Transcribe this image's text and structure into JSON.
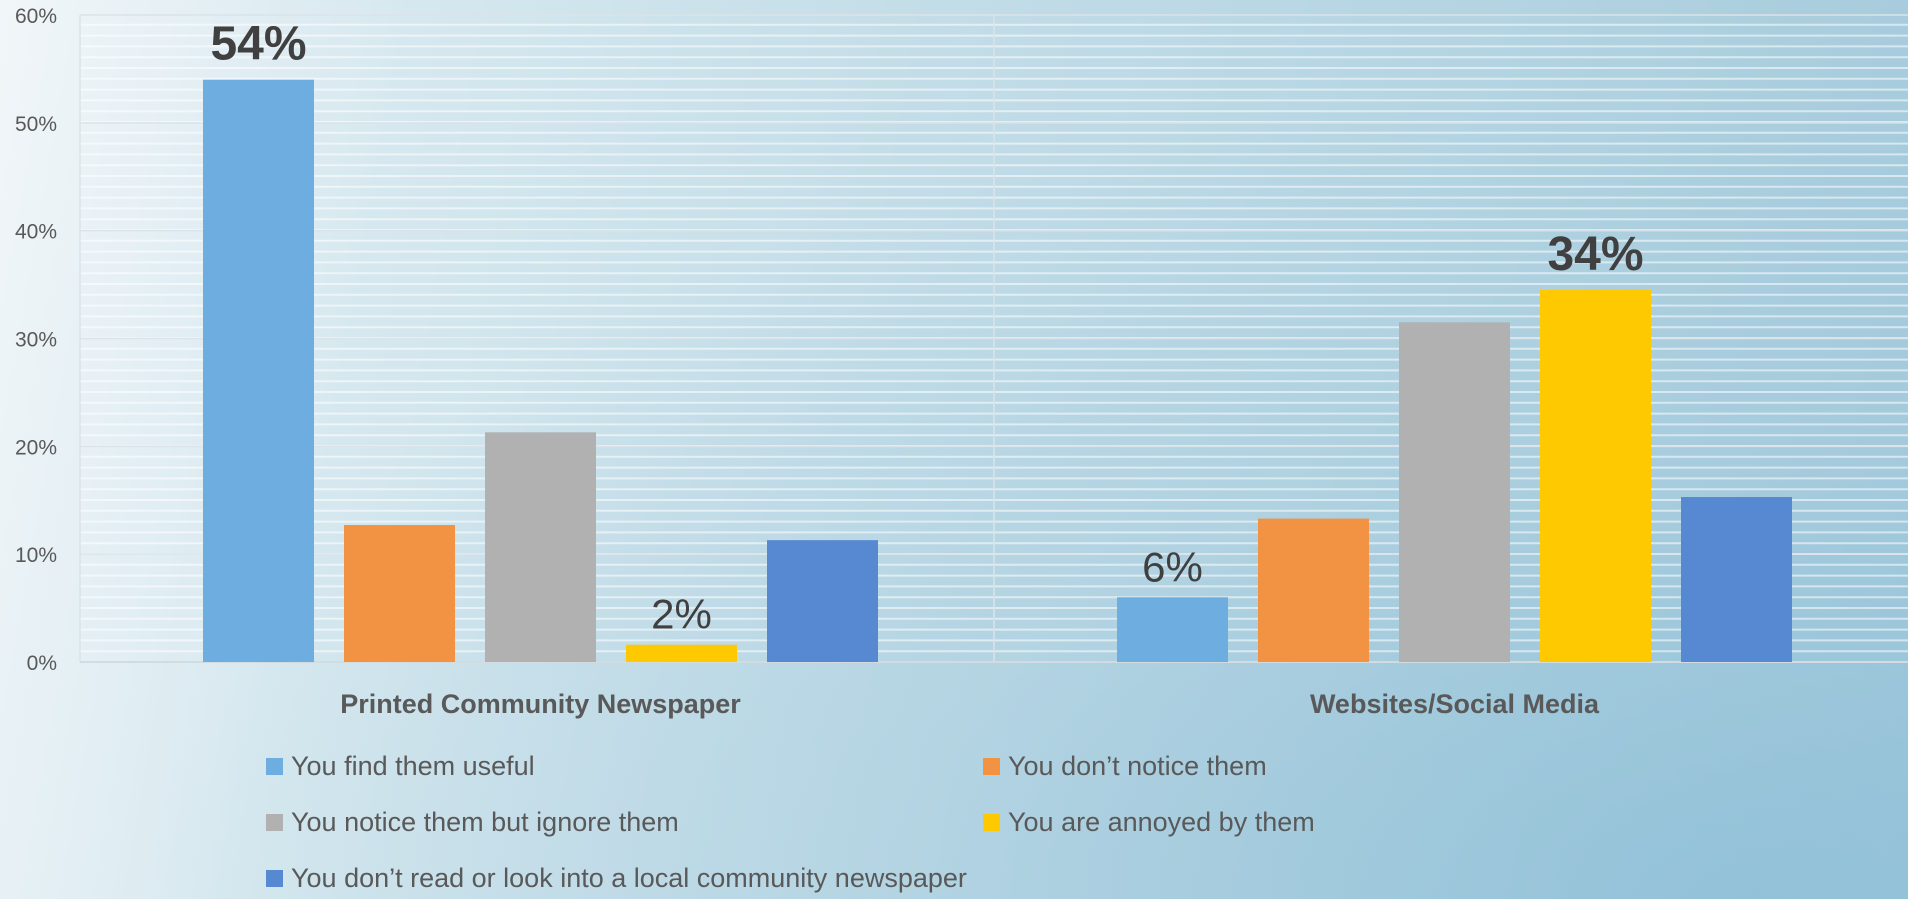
{
  "chart_data": {
    "type": "bar",
    "categories": [
      "Printed Community Newspaper",
      "Websites/Social Media"
    ],
    "series": [
      {
        "name": "You find them useful",
        "color": "#6daddf",
        "values": [
          54,
          6
        ]
      },
      {
        "name": "You don’t notice them",
        "color": "#f29243",
        "values": [
          12.7,
          13.3
        ]
      },
      {
        "name": "You notice them but ignore them",
        "color": "#b1b1b1",
        "values": [
          21.3,
          31.5
        ]
      },
      {
        "name": "You are annoyed by them",
        "color": "#fec900",
        "values": [
          1.6,
          34.5
        ]
      },
      {
        "name": "You don’t read or look into a local community newspaper",
        "color": "#5788d2",
        "values": [
          11.3,
          15.3
        ]
      }
    ],
    "data_labels": [
      {
        "category": 0,
        "series": 0,
        "text": "54%",
        "emphasis": true
      },
      {
        "category": 0,
        "series": 3,
        "text": "2%",
        "emphasis": false
      },
      {
        "category": 1,
        "series": 0,
        "text": "6%",
        "emphasis": false
      },
      {
        "category": 1,
        "series": 3,
        "text": "34%",
        "emphasis": true
      }
    ],
    "y_ticks": [
      "0%",
      "10%",
      "20%",
      "30%",
      "40%",
      "50%",
      "60%"
    ],
    "ylim": [
      0,
      60
    ],
    "grid": true,
    "legend_position": "bottom",
    "title": "",
    "xlabel": "",
    "ylabel": ""
  }
}
